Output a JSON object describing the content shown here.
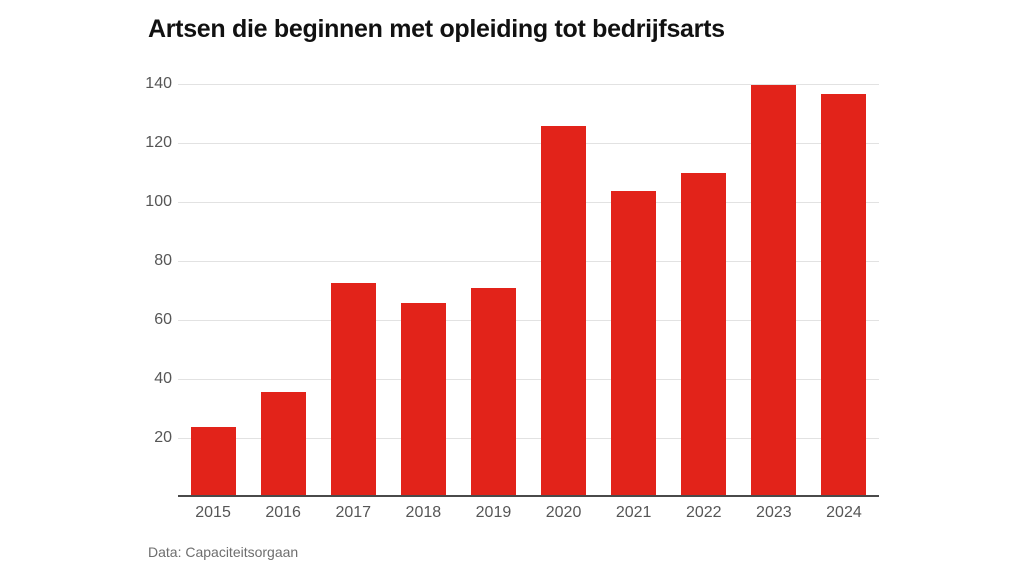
{
  "page": {
    "background": "#ffffff"
  },
  "chart_data": {
    "type": "bar",
    "title": "Artsen die beginnen met opleiding tot bedrijfsarts",
    "source": "Data: Capaciteitsorgaan",
    "categories": [
      "2015",
      "2016",
      "2017",
      "2018",
      "2019",
      "2020",
      "2021",
      "2022",
      "2023",
      "2024"
    ],
    "values": [
      23,
      35,
      72,
      65,
      70,
      125,
      103,
      109,
      139,
      136
    ],
    "xlabel": "",
    "ylabel": "",
    "ylim": [
      0,
      140
    ],
    "yticks": [
      20,
      40,
      60,
      80,
      100,
      120,
      140
    ],
    "grid": true,
    "legend": false,
    "bar_color": "#e2231a",
    "gridline_color": "#e2e2e2",
    "axis_line_color": "#4a4a4a",
    "tick_label_color": "#565656",
    "title_color": "#111111",
    "source_color": "#6e6e6e"
  }
}
